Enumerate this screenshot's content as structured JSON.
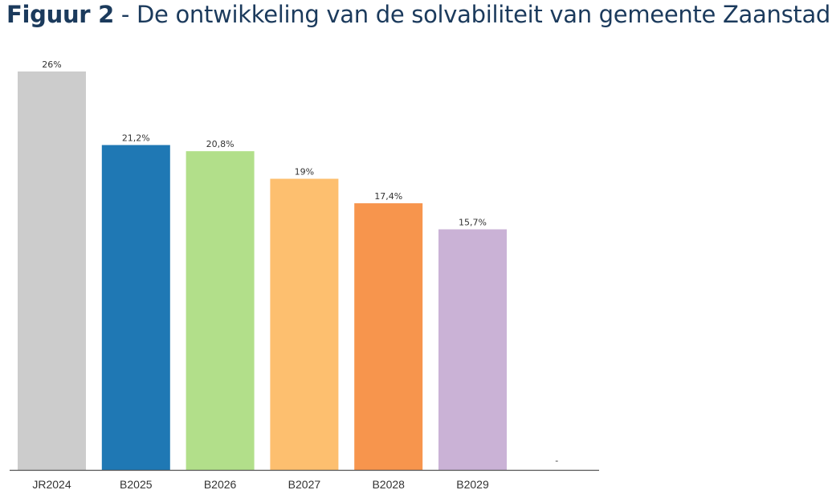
{
  "figure": {
    "label": "Figuur 2",
    "separator": " - ",
    "caption": "De ontwikkeling van de solvabiliteit van gemeente Zaanstad"
  },
  "chart_data": {
    "type": "bar",
    "categories": [
      "JR2024",
      "B2025",
      "B2026",
      "B2027",
      "B2028",
      "B2029",
      ""
    ],
    "values": [
      26,
      21.2,
      20.8,
      19,
      17.4,
      15.7,
      null
    ],
    "data_labels": [
      "26%",
      "21,2%",
      "20,8%",
      "19%",
      "17,4%",
      "15,7%",
      "-"
    ],
    "colors": [
      "#cccccc",
      "#1f78b4",
      "#b2df8a",
      "#fdbf6f",
      "#f7954d",
      "#cab2d6",
      "#ffffff"
    ],
    "unit": "%",
    "ylim": [
      0,
      26
    ],
    "grid": false,
    "legend": "none"
  }
}
